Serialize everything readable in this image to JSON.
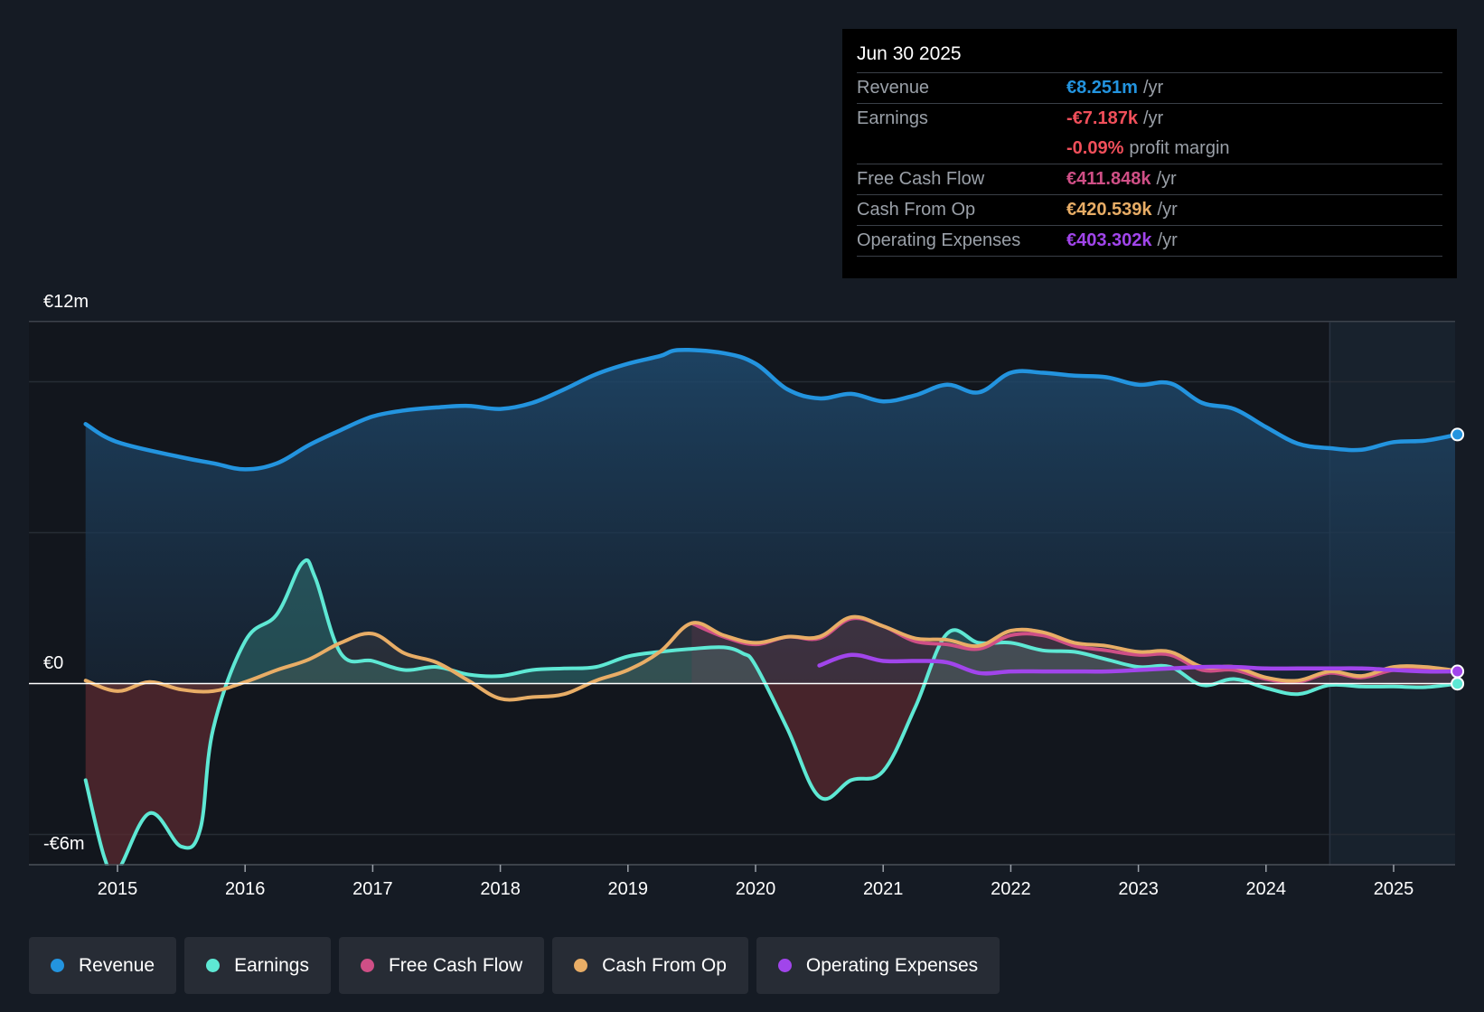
{
  "chart_data": {
    "type": "area",
    "y_axis": {
      "top_label": "€12m",
      "zero_label": "€0",
      "bottom_label": "-€6m",
      "ylim": [
        -6.6,
        12
      ]
    },
    "x_ticks": [
      "2015",
      "2016",
      "2017",
      "2018",
      "2019",
      "2020",
      "2021",
      "2022",
      "2023",
      "2024",
      "2025"
    ],
    "xlim": [
      2014.25,
      2025.5
    ],
    "forecast_start": 2024.5,
    "series": [
      {
        "name": "Revenue",
        "color": "#2394df",
        "points": [
          [
            2014.75,
            8.6
          ],
          [
            2015.0,
            8.0
          ],
          [
            2015.5,
            7.5
          ],
          [
            2015.75,
            7.3
          ],
          [
            2016.0,
            7.1
          ],
          [
            2016.25,
            7.3
          ],
          [
            2016.5,
            7.9
          ],
          [
            2016.75,
            8.4
          ],
          [
            2017.0,
            8.85
          ],
          [
            2017.25,
            9.05
          ],
          [
            2017.5,
            9.15
          ],
          [
            2017.75,
            9.2
          ],
          [
            2018.0,
            9.1
          ],
          [
            2018.25,
            9.3
          ],
          [
            2018.5,
            9.75
          ],
          [
            2018.75,
            10.25
          ],
          [
            2019.0,
            10.6
          ],
          [
            2019.25,
            10.85
          ],
          [
            2019.4,
            11.05
          ],
          [
            2019.75,
            10.95
          ],
          [
            2020.0,
            10.6
          ],
          [
            2020.25,
            9.75
          ],
          [
            2020.5,
            9.45
          ],
          [
            2020.75,
            9.6
          ],
          [
            2021.0,
            9.35
          ],
          [
            2021.25,
            9.55
          ],
          [
            2021.5,
            9.9
          ],
          [
            2021.75,
            9.65
          ],
          [
            2022.0,
            10.3
          ],
          [
            2022.25,
            10.3
          ],
          [
            2022.5,
            10.2
          ],
          [
            2022.75,
            10.15
          ],
          [
            2023.0,
            9.9
          ],
          [
            2023.25,
            9.95
          ],
          [
            2023.5,
            9.3
          ],
          [
            2023.75,
            9.1
          ],
          [
            2024.0,
            8.5
          ],
          [
            2024.25,
            7.95
          ],
          [
            2024.5,
            7.8
          ],
          [
            2024.75,
            7.75
          ],
          [
            2025.0,
            8.0
          ],
          [
            2025.25,
            8.05
          ],
          [
            2025.5,
            8.251
          ]
        ]
      },
      {
        "name": "Earnings",
        "color": "#5ee8d4",
        "points": [
          [
            2014.75,
            -3.2
          ],
          [
            2014.9,
            -5.8
          ],
          [
            2015.0,
            -6.2
          ],
          [
            2015.25,
            -4.3
          ],
          [
            2015.5,
            -5.4
          ],
          [
            2015.65,
            -4.8
          ],
          [
            2015.75,
            -1.5
          ],
          [
            2016.0,
            1.4
          ],
          [
            2016.25,
            2.3
          ],
          [
            2016.45,
            4.0
          ],
          [
            2016.55,
            3.5
          ],
          [
            2016.75,
            1.0
          ],
          [
            2017.0,
            0.75
          ],
          [
            2017.25,
            0.45
          ],
          [
            2017.5,
            0.55
          ],
          [
            2017.75,
            0.3
          ],
          [
            2018.0,
            0.25
          ],
          [
            2018.25,
            0.45
          ],
          [
            2018.5,
            0.5
          ],
          [
            2018.75,
            0.55
          ],
          [
            2019.0,
            0.9
          ],
          [
            2019.25,
            1.05
          ],
          [
            2019.5,
            1.15
          ],
          [
            2019.75,
            1.2
          ],
          [
            2019.9,
            1.0
          ],
          [
            2020.0,
            0.6
          ],
          [
            2020.25,
            -1.5
          ],
          [
            2020.5,
            -3.75
          ],
          [
            2020.75,
            -3.2
          ],
          [
            2021.0,
            -2.9
          ],
          [
            2021.25,
            -0.8
          ],
          [
            2021.5,
            1.65
          ],
          [
            2021.75,
            1.35
          ],
          [
            2022.0,
            1.35
          ],
          [
            2022.25,
            1.1
          ],
          [
            2022.5,
            1.05
          ],
          [
            2022.75,
            0.8
          ],
          [
            2023.0,
            0.55
          ],
          [
            2023.25,
            0.55
          ],
          [
            2023.5,
            -0.05
          ],
          [
            2023.75,
            0.15
          ],
          [
            2024.0,
            -0.15
          ],
          [
            2024.25,
            -0.35
          ],
          [
            2024.5,
            -0.05
          ],
          [
            2024.75,
            -0.1
          ],
          [
            2025.0,
            -0.1
          ],
          [
            2025.25,
            -0.12
          ],
          [
            2025.5,
            -0.007
          ]
        ]
      },
      {
        "name": "Free Cash Flow",
        "color": "#cf4f86",
        "points": [
          [
            2019.5,
            2.0
          ],
          [
            2019.75,
            1.55
          ],
          [
            2020.0,
            1.3
          ],
          [
            2020.25,
            1.55
          ],
          [
            2020.5,
            1.5
          ],
          [
            2020.75,
            2.15
          ],
          [
            2021.0,
            1.9
          ],
          [
            2021.25,
            1.4
          ],
          [
            2021.5,
            1.3
          ],
          [
            2021.75,
            1.15
          ],
          [
            2022.0,
            1.6
          ],
          [
            2022.25,
            1.6
          ],
          [
            2022.5,
            1.25
          ],
          [
            2022.75,
            1.1
          ],
          [
            2023.0,
            0.95
          ],
          [
            2023.25,
            0.95
          ],
          [
            2023.5,
            0.45
          ],
          [
            2023.75,
            0.45
          ],
          [
            2024.0,
            0.15
          ],
          [
            2024.25,
            0.05
          ],
          [
            2024.5,
            0.35
          ],
          [
            2024.75,
            0.2
          ],
          [
            2025.0,
            0.45
          ],
          [
            2025.25,
            0.45
          ],
          [
            2025.5,
            0.412
          ]
        ]
      },
      {
        "name": "Cash From Op",
        "color": "#e8ad66",
        "points": [
          [
            2014.75,
            0.1
          ],
          [
            2015.0,
            -0.25
          ],
          [
            2015.25,
            0.05
          ],
          [
            2015.5,
            -0.2
          ],
          [
            2015.75,
            -0.25
          ],
          [
            2016.0,
            0.05
          ],
          [
            2016.25,
            0.45
          ],
          [
            2016.5,
            0.8
          ],
          [
            2016.75,
            1.35
          ],
          [
            2017.0,
            1.65
          ],
          [
            2017.25,
            1.0
          ],
          [
            2017.5,
            0.7
          ],
          [
            2017.75,
            0.1
          ],
          [
            2018.0,
            -0.5
          ],
          [
            2018.25,
            -0.45
          ],
          [
            2018.5,
            -0.35
          ],
          [
            2018.75,
            0.1
          ],
          [
            2019.0,
            0.45
          ],
          [
            2019.25,
            1.05
          ],
          [
            2019.5,
            2.0
          ],
          [
            2019.75,
            1.6
          ],
          [
            2020.0,
            1.35
          ],
          [
            2020.25,
            1.55
          ],
          [
            2020.5,
            1.55
          ],
          [
            2020.75,
            2.2
          ],
          [
            2021.0,
            1.9
          ],
          [
            2021.25,
            1.5
          ],
          [
            2021.5,
            1.45
          ],
          [
            2021.75,
            1.25
          ],
          [
            2022.0,
            1.75
          ],
          [
            2022.25,
            1.7
          ],
          [
            2022.5,
            1.35
          ],
          [
            2022.75,
            1.25
          ],
          [
            2023.0,
            1.05
          ],
          [
            2023.25,
            1.05
          ],
          [
            2023.5,
            0.55
          ],
          [
            2023.75,
            0.55
          ],
          [
            2024.0,
            0.2
          ],
          [
            2024.25,
            0.1
          ],
          [
            2024.5,
            0.4
          ],
          [
            2024.75,
            0.25
          ],
          [
            2025.0,
            0.55
          ],
          [
            2025.25,
            0.55
          ],
          [
            2025.5,
            0.421
          ]
        ]
      },
      {
        "name": "Operating Expenses",
        "color": "#a145eb",
        "points": [
          [
            2020.5,
            0.6
          ],
          [
            2020.75,
            0.95
          ],
          [
            2021.0,
            0.75
          ],
          [
            2021.25,
            0.75
          ],
          [
            2021.5,
            0.7
          ],
          [
            2021.75,
            0.35
          ],
          [
            2022.0,
            0.4
          ],
          [
            2022.25,
            0.4
          ],
          [
            2022.5,
            0.4
          ],
          [
            2022.75,
            0.4
          ],
          [
            2023.0,
            0.45
          ],
          [
            2023.25,
            0.5
          ],
          [
            2023.5,
            0.55
          ],
          [
            2023.75,
            0.55
          ],
          [
            2024.0,
            0.5
          ],
          [
            2024.25,
            0.5
          ],
          [
            2024.5,
            0.5
          ],
          [
            2024.75,
            0.5
          ],
          [
            2025.0,
            0.45
          ],
          [
            2025.25,
            0.4
          ],
          [
            2025.5,
            0.403
          ]
        ]
      }
    ]
  },
  "tooltip": {
    "date": "Jun 30 2025",
    "rows": [
      {
        "label": "Revenue",
        "value": "€8.251m",
        "unit": "/yr",
        "color": "#2394df"
      },
      {
        "label": "Earnings",
        "value": "-€7.187k",
        "unit": "/yr",
        "color": "#f04f5a"
      },
      {
        "label": "",
        "value": "-0.09%",
        "unit": "profit margin",
        "color": "#f04f5a"
      },
      {
        "label": "Free Cash Flow",
        "value": "€411.848k",
        "unit": "/yr",
        "color": "#cf4f86"
      },
      {
        "label": "Cash From Op",
        "value": "€420.539k",
        "unit": "/yr",
        "color": "#e8ad66"
      },
      {
        "label": "Operating Expenses",
        "value": "€403.302k",
        "unit": "/yr",
        "color": "#a145eb"
      }
    ]
  },
  "legend": [
    {
      "label": "Revenue",
      "color": "#2394df"
    },
    {
      "label": "Earnings",
      "color": "#5ee8d4"
    },
    {
      "label": "Free Cash Flow",
      "color": "#cf4f86"
    },
    {
      "label": "Cash From Op",
      "color": "#e8ad66"
    },
    {
      "label": "Operating Expenses",
      "color": "#a145eb"
    }
  ]
}
